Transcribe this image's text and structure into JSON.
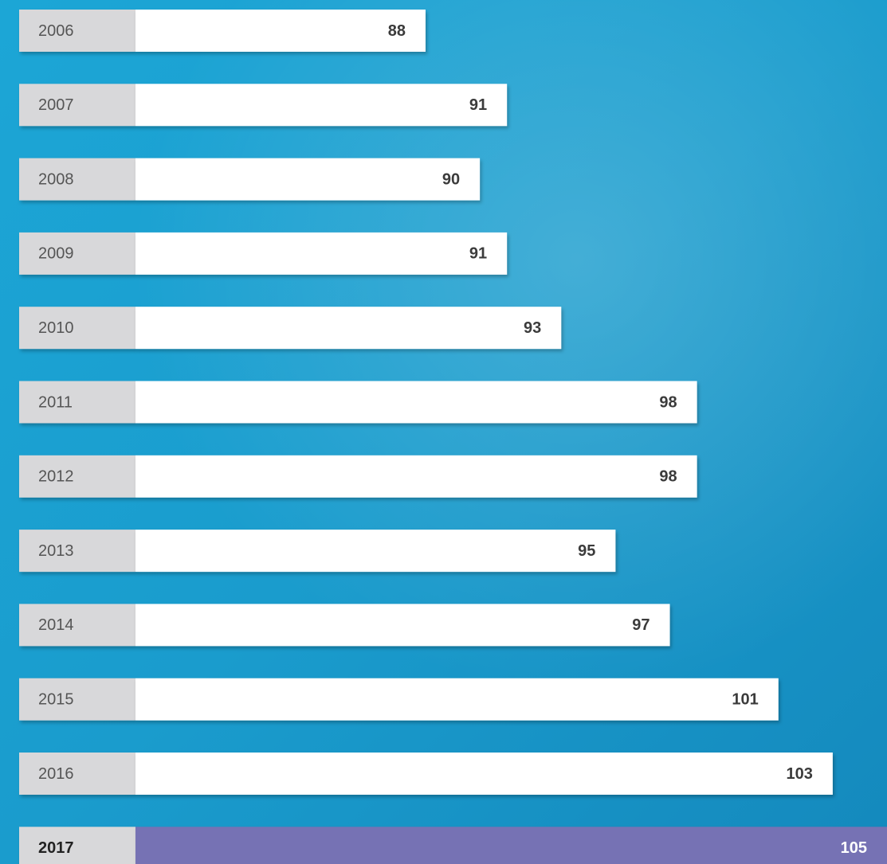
{
  "chart_data": {
    "type": "bar",
    "orientation": "horizontal",
    "categories": [
      "2006",
      "2007",
      "2008",
      "2009",
      "2010",
      "2011",
      "2012",
      "2013",
      "2014",
      "2015",
      "2016",
      "2017"
    ],
    "values": [
      88,
      91,
      90,
      91,
      93,
      98,
      98,
      95,
      97,
      101,
      103,
      105
    ],
    "colors": [
      "#ffffff",
      "#ffffff",
      "#ffffff",
      "#ffffff",
      "#ffffff",
      "#ffffff",
      "#ffffff",
      "#ffffff",
      "#ffffff",
      "#ffffff",
      "#ffffff",
      "#7672b4"
    ]
  }
}
